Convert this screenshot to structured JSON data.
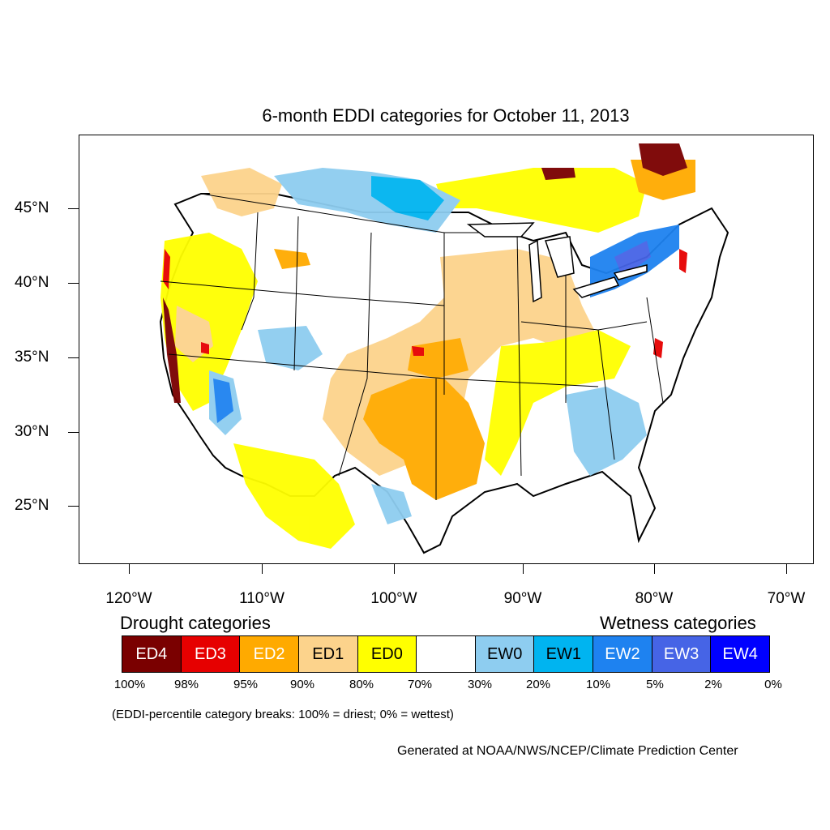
{
  "title": "6-month EDDI categories for October 11, 2013",
  "lat_labels": [
    "45°N",
    "40°N",
    "35°N",
    "30°N",
    "25°N"
  ],
  "lon_labels": [
    "120°W",
    "110°W",
    "100°W",
    "90°W",
    "80°W",
    "70°W"
  ],
  "legend": {
    "drought_heading": "Drought categories",
    "wetness_heading": "Wetness categories",
    "categories": [
      {
        "label": "ED4",
        "color": "#7a0000",
        "text_color": "#ffffff"
      },
      {
        "label": "ED3",
        "color": "#e60000",
        "text_color": "#ffffff"
      },
      {
        "label": "ED2",
        "color": "#ffaa00",
        "text_color": "#ffffff"
      },
      {
        "label": "ED1",
        "color": "#fcd38c",
        "text_color": "#000000"
      },
      {
        "label": "ED0",
        "color": "#ffff00",
        "text_color": "#000000"
      },
      {
        "label": "",
        "color": "#ffffff",
        "text_color": "#000000"
      },
      {
        "label": "EW0",
        "color": "#8ecdf0",
        "text_color": "#000000"
      },
      {
        "label": "EW1",
        "color": "#00b4f0",
        "text_color": "#000000"
      },
      {
        "label": "EW2",
        "color": "#1e82f0",
        "text_color": "#ffffff"
      },
      {
        "label": "EW3",
        "color": "#4664e6",
        "text_color": "#ffffff"
      },
      {
        "label": "EW4",
        "color": "#0000ff",
        "text_color": "#ffffff"
      }
    ],
    "percent_breaks": [
      "100%",
      "98%",
      "95%",
      "90%",
      "80%",
      "70%",
      "30%",
      "20%",
      "10%",
      "5%",
      "2%",
      "0%"
    ]
  },
  "breaks_note": "(EDDI-percentile category breaks: 100% = driest; 0% = wettest)",
  "credit": "Generated at NOAA/NWS/NCEP/Climate Prediction Center"
}
